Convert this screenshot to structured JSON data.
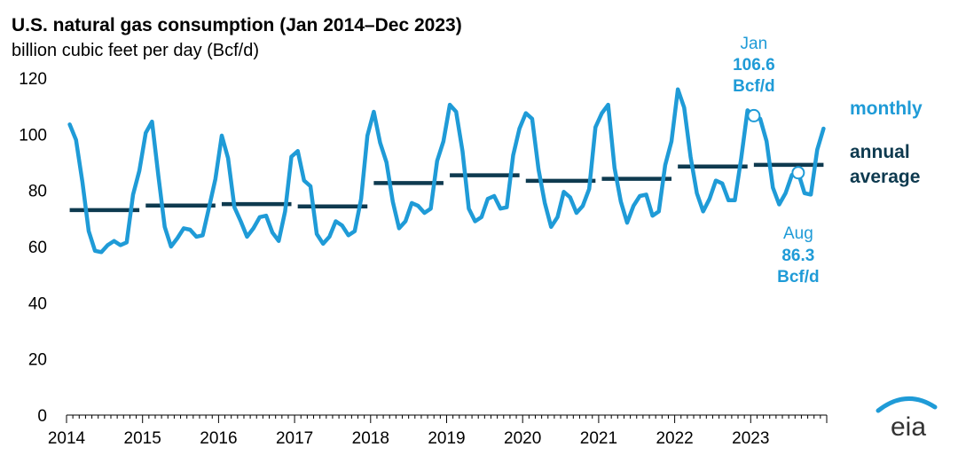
{
  "chart_data": {
    "type": "line",
    "title": "U.S. natural gas consumption (Jan 2014–Dec 2023)",
    "subtitle": "billion cubic feet per day (Bcf/d)",
    "ylabel": "",
    "xlabel": "",
    "ylim": [
      0,
      120
    ],
    "yticks": [
      "0",
      "20",
      "40",
      "60",
      "80",
      "100",
      "120"
    ],
    "xlim": [
      2014,
      2024
    ],
    "xticks": [
      "2014",
      "2015",
      "2016",
      "2017",
      "2018",
      "2019",
      "2020",
      "2021",
      "2022",
      "2023"
    ],
    "grid": false,
    "legend_position": "right",
    "colors": {
      "monthly": "#1f9bd7",
      "annual": "#0e3a4f",
      "annotation": "#1f9bd7"
    },
    "series": [
      {
        "name": "monthly",
        "start": "2014-01",
        "frequency": "monthly",
        "values": [
          103.5,
          98.0,
          83.0,
          65.5,
          58.5,
          58.0,
          60.5,
          62.0,
          60.5,
          61.5,
          78.5,
          87.0,
          100.5,
          104.5,
          85.0,
          67.0,
          60.0,
          63.0,
          66.5,
          66.0,
          63.5,
          64.0,
          74.0,
          84.0,
          99.5,
          91.5,
          74.0,
          69.0,
          63.5,
          66.5,
          70.5,
          71.0,
          65.0,
          62.0,
          72.5,
          92.0,
          94.0,
          83.5,
          81.5,
          64.5,
          61.0,
          63.5,
          69.0,
          67.5,
          64.0,
          65.5,
          77.0,
          99.5,
          108.0,
          97.0,
          90.0,
          76.0,
          66.5,
          69.0,
          75.5,
          74.5,
          72.0,
          73.5,
          90.5,
          97.5,
          110.5,
          108.0,
          94.0,
          73.5,
          69.0,
          70.5,
          77.0,
          78.0,
          73.5,
          74.0,
          92.5,
          102.0,
          107.5,
          105.5,
          87.5,
          75.5,
          67.0,
          70.5,
          79.5,
          77.5,
          72.0,
          74.5,
          80.5,
          102.5,
          107.5,
          110.5,
          88.0,
          76.0,
          68.5,
          74.5,
          78.0,
          78.5,
          71.0,
          72.5,
          89.0,
          97.5,
          116.0,
          109.5,
          92.0,
          79.0,
          72.5,
          77.0,
          83.5,
          82.5,
          76.5,
          76.5,
          91.5,
          108.5,
          106.6,
          105.5,
          97.5,
          81.0,
          75.0,
          79.0,
          85.5,
          86.3,
          79.0,
          78.5,
          94.5,
          102.0
        ]
      },
      {
        "name": "annual average",
        "frequency": "annual",
        "x": [
          "2014",
          "2015",
          "2016",
          "2017",
          "2018",
          "2019",
          "2020",
          "2021",
          "2022",
          "2023"
        ],
        "values": [
          73.0,
          74.6,
          75.1,
          74.3,
          82.6,
          85.4,
          83.4,
          84.1,
          88.5,
          89.1
        ]
      }
    ],
    "legend": [
      {
        "label": "monthly",
        "series": "monthly"
      },
      {
        "label_line1": "annual",
        "label_line2": "average",
        "series": "annual average"
      }
    ],
    "annotations": [
      {
        "date": "2023-01",
        "value": 106.6,
        "month": "Jan",
        "value_text": "106.6",
        "unit": "Bcf/d"
      },
      {
        "date": "2023-08",
        "value": 86.3,
        "month": "Aug",
        "value_text": "86.3",
        "unit": "Bcf/d"
      }
    ]
  },
  "logo": {
    "text": "eia"
  }
}
